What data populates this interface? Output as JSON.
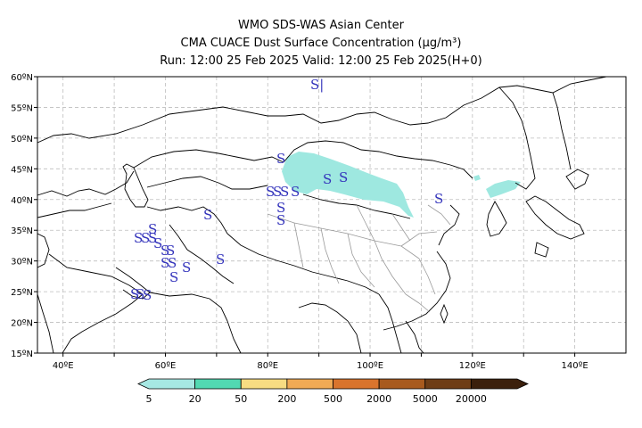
{
  "header": {
    "line1": "WMO SDS-WAS Asian Center",
    "line2": "CMA CUACE Dust Surface Concentration (μg/m³)",
    "line3": "Run: 12:00 25 Feb 2025     Valid: 12:00 25 Feb 2025(H+0)"
  },
  "map": {
    "lon_range": [
      35,
      150
    ],
    "lat_range": [
      15,
      60
    ],
    "lon_ticks": [
      "40ºE",
      "60ºE",
      "80ºE",
      "100ºE",
      "120ºE",
      "140ºE"
    ],
    "lat_ticks": [
      "15ºN",
      "20ºN",
      "25ºN",
      "30ºN",
      "35ºN",
      "40ºN",
      "45ºN",
      "50ºN",
      "55ºN",
      "60ºN"
    ],
    "grid": "dashed",
    "dust_symbol": "S",
    "dust_color": "#3333bb",
    "shade_color": "#9ee8e0"
  },
  "colorbar": {
    "labels": [
      "5",
      "20",
      "50",
      "200",
      "500",
      "2000",
      "5000",
      "20000"
    ],
    "colors": [
      "#a6e8e3",
      "#52d9b2",
      "#f7dc82",
      "#f0aa55",
      "#d9742d",
      "#a85a1e",
      "#6e3d16",
      "#3b200c"
    ]
  }
}
